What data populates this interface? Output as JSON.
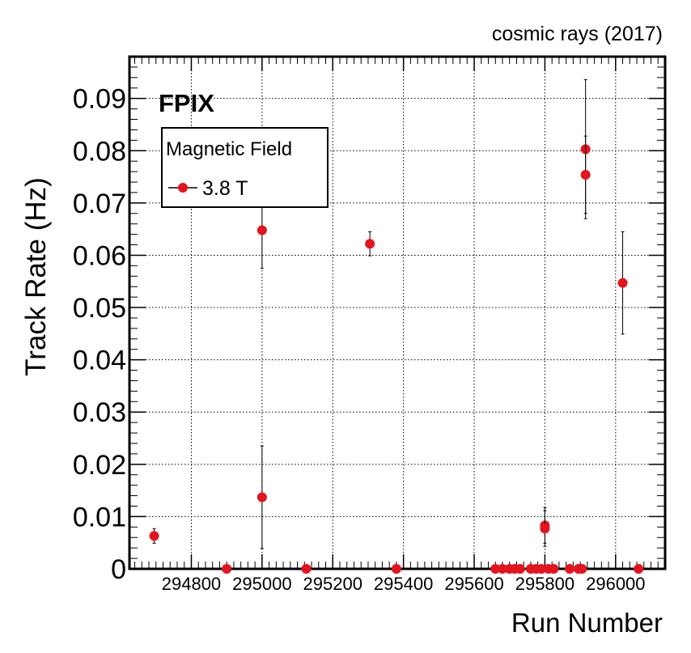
{
  "chart_data": {
    "type": "scatter",
    "top_right_text": "cosmic rays (2017)",
    "corner_label": "FPIX",
    "xlabel": "Run Number",
    "ylabel": "Track Rate (Hz)",
    "xlim": [
      294625,
      296140
    ],
    "ylim": [
      0,
      0.098
    ],
    "xticks": [
      294800,
      295000,
      295200,
      295400,
      295600,
      295800,
      296000
    ],
    "yticks": [
      0,
      0.01,
      0.02,
      0.03,
      0.04,
      0.05,
      0.06,
      0.07,
      0.08,
      0.09
    ],
    "ytick_labels": [
      "0",
      "0.01",
      "0.02",
      "0.03",
      "0.04",
      "0.05",
      "0.06",
      "0.07",
      "0.08",
      "0.09"
    ],
    "grid": true,
    "legend": {
      "title": "Magnetic Field",
      "placement": "top-left",
      "entries": [
        "3.8 T"
      ]
    },
    "series": [
      {
        "name": "3.8 T",
        "color": "#e3141e",
        "points": [
          {
            "x": 294695,
            "y": 0.0063,
            "err": 0.0014
          },
          {
            "x": 294900,
            "y": 0.0,
            "err": 0
          },
          {
            "x": 295000,
            "y": 0.0648,
            "err": 0.0073
          },
          {
            "x": 295000,
            "y": 0.0137,
            "err": 0.0098
          },
          {
            "x": 295125,
            "y": 0.0,
            "err": 0
          },
          {
            "x": 295305,
            "y": 0.0622,
            "err": 0.0023
          },
          {
            "x": 295380,
            "y": 0.0,
            "err": 0
          },
          {
            "x": 295660,
            "y": 0.0,
            "err": 0
          },
          {
            "x": 295680,
            "y": 0.0,
            "err": 0
          },
          {
            "x": 295700,
            "y": 0.0,
            "err": 0
          },
          {
            "x": 295715,
            "y": 0.0,
            "err": 0
          },
          {
            "x": 295730,
            "y": 0.0,
            "err": 0
          },
          {
            "x": 295760,
            "y": 0.0,
            "err": 0
          },
          {
            "x": 295775,
            "y": 0.0,
            "err": 0
          },
          {
            "x": 295790,
            "y": 0.0,
            "err": 0
          },
          {
            "x": 295800,
            "y": 0.0083,
            "err": 0.0034
          },
          {
            "x": 295800,
            "y": 0.0077,
            "err": 0.0034
          },
          {
            "x": 295810,
            "y": 0.0,
            "err": 0
          },
          {
            "x": 295825,
            "y": 0.0,
            "err": 0
          },
          {
            "x": 295870,
            "y": 0.0,
            "err": 0
          },
          {
            "x": 295895,
            "y": 0.0,
            "err": 0
          },
          {
            "x": 295905,
            "y": 0.0,
            "err": 0
          },
          {
            "x": 295915,
            "y": 0.0803,
            "err": 0.0133
          },
          {
            "x": 295915,
            "y": 0.0754,
            "err": 0.0074
          },
          {
            "x": 296020,
            "y": 0.0547,
            "err": 0.0098
          },
          {
            "x": 296065,
            "y": 0.0,
            "err": 0
          }
        ]
      }
    ]
  }
}
